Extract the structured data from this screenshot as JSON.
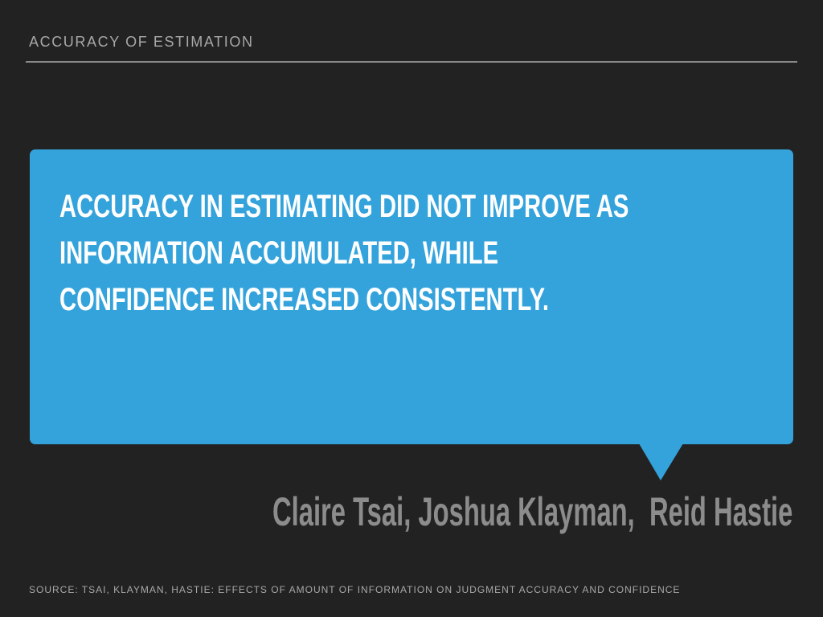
{
  "header": {
    "title": "ACCURACY OF ESTIMATION"
  },
  "quote": {
    "lines": [
      "ACCURACY IN ESTIMATING DID NOT IMPROVE AS",
      "INFORMATION ACCUMULATED, WHILE",
      "CONFIDENCE INCREASED CONSISTENTLY."
    ]
  },
  "attribution": "Claire Tsai, Joshua Klayman,  Reid Hastie",
  "footer": {
    "source": "SOURCE: TSAI, KLAYMAN, HASTIE: EFFECTS OF AMOUNT OF INFORMATION ON JUDGMENT ACCURACY AND CONFIDENCE"
  }
}
